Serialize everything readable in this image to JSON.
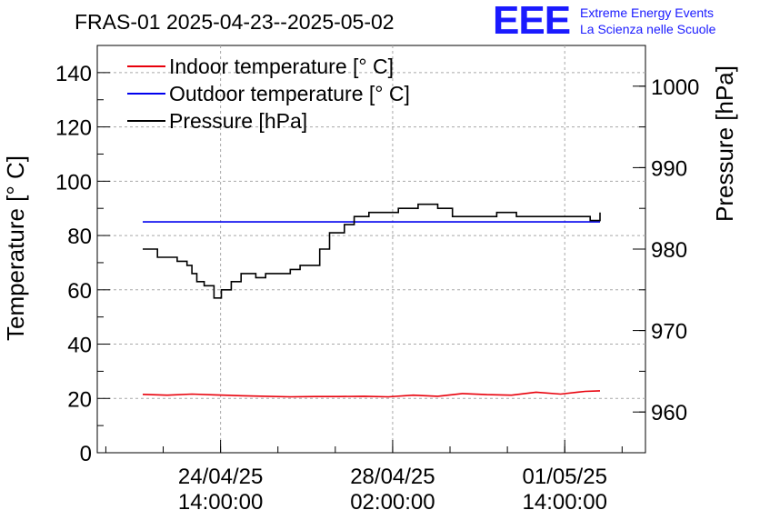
{
  "chart_data": {
    "type": "line",
    "title": "FRAS-01 2025-04-23--2025-05-02",
    "ylabel": "Temperature [° C]",
    "y2label": "Pressure [hPa]",
    "ylim": [
      0,
      150
    ],
    "y2lim": [
      955,
      1005
    ],
    "x_ticks": [
      {
        "x": 1.583,
        "date": "24/04/25",
        "time": "14:00:00"
      },
      {
        "x": 5.083,
        "date": "28/04/25",
        "time": "02:00:00"
      },
      {
        "x": 8.583,
        "date": "01/05/25",
        "time": "14:00:00"
      }
    ],
    "y_ticks": [
      0,
      20,
      40,
      60,
      80,
      100,
      120,
      140
    ],
    "y2_ticks": [
      960,
      970,
      980,
      990,
      1000
    ],
    "grid": true,
    "legend_position": "top-left",
    "series": [
      {
        "name": "Indoor temperature [° C]",
        "axis": "left",
        "color": "#e8000b",
        "x": [
          0,
          0.5,
          1,
          1.5,
          2,
          2.5,
          3,
          3.5,
          4,
          4.5,
          5,
          5.5,
          6,
          6.5,
          7,
          7.5,
          8,
          8.5,
          9,
          9.3
        ],
        "y": [
          21.5,
          21.2,
          21.6,
          21.3,
          21.0,
          20.8,
          20.6,
          20.7,
          20.7,
          20.8,
          20.6,
          21.2,
          20.8,
          21.8,
          21.4,
          21.2,
          22.3,
          21.6,
          22.6,
          22.8
        ]
      },
      {
        "name": "Outdoor temperature [° C]",
        "axis": "left",
        "color": "#0000ee",
        "x": [
          0,
          9.3
        ],
        "y": [
          85,
          85
        ]
      },
      {
        "name": "Pressure [hPa]",
        "axis": "right",
        "color": "#000000",
        "x": [
          0,
          0.15,
          0.3,
          0.5,
          0.7,
          0.9,
          1.0,
          1.1,
          1.25,
          1.45,
          1.6,
          1.8,
          2.0,
          2.3,
          2.5,
          2.8,
          3.0,
          3.2,
          3.4,
          3.6,
          3.8,
          4.1,
          4.3,
          4.6,
          4.8,
          5.2,
          5.6,
          6.0,
          6.3,
          6.6,
          6.9,
          7.2,
          7.6,
          8.0,
          8.4,
          8.8,
          9.1,
          9.3
        ],
        "y": [
          980.0,
          980.0,
          979.0,
          979.0,
          978.5,
          978.0,
          977.0,
          976.0,
          975.5,
          974.0,
          975.0,
          976.0,
          977.0,
          976.5,
          977.0,
          977.0,
          977.5,
          978.0,
          978.0,
          980.0,
          982.0,
          983.0,
          984.0,
          984.5,
          984.5,
          985.0,
          985.5,
          985.0,
          984.0,
          984.0,
          984.0,
          984.5,
          984.0,
          984.0,
          984.0,
          984.0,
          983.5,
          984.5
        ]
      }
    ]
  },
  "logo": {
    "mark": "EEE",
    "line1": "Extreme Energy Events",
    "line2": "La Scienza nelle Scuole"
  }
}
